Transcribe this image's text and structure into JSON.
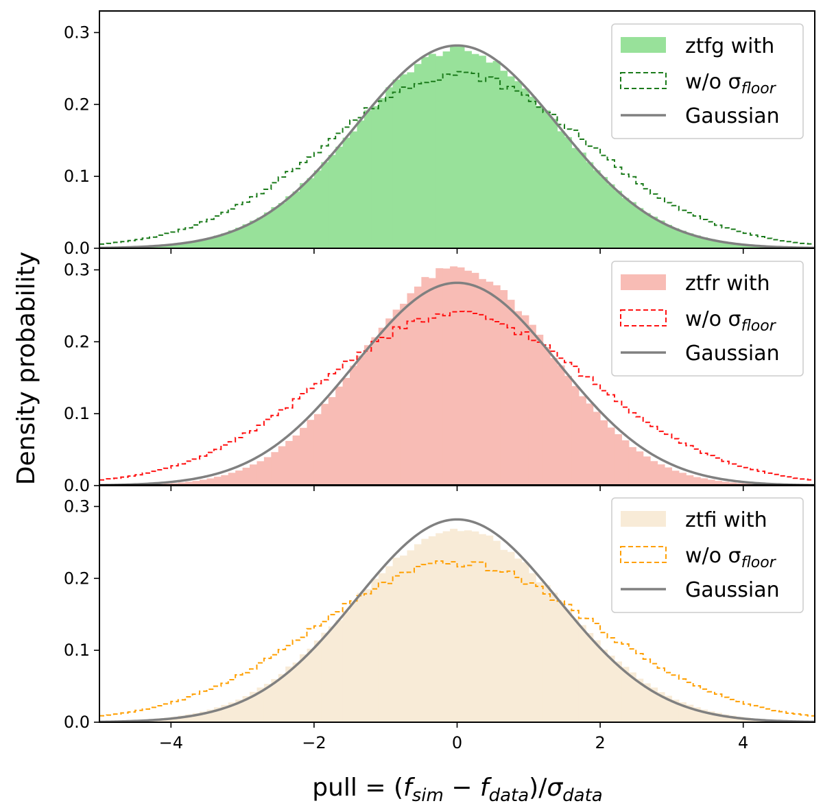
{
  "chart_data": [
    {
      "type": "histogram-step",
      "panel": "top",
      "band": "ztfg",
      "xlim": [
        -5,
        5
      ],
      "ylim": [
        0,
        0.33
      ],
      "yticks": [
        0.0,
        0.1,
        0.2,
        0.3
      ],
      "ytick_labels": [
        "0.0",
        "0.1",
        "0.2",
        "0.3"
      ],
      "legend_position": "top-right",
      "series": [
        {
          "name": "ztfg with",
          "kind": "filled-histogram",
          "color": "#98e19a",
          "sigma": 1.43,
          "peak": 0.276,
          "bins": 100
        },
        {
          "name": "w/o σ_floor",
          "kind": "dashed-step-histogram",
          "color": "#1a7a1a",
          "sigma": 1.82,
          "peak": 0.242,
          "bins": 100
        },
        {
          "name": "Gaussian",
          "kind": "line",
          "color": "#808080",
          "sigma": 1.41,
          "peak": 0.282
        }
      ],
      "legend": [
        {
          "label_main": "ztfg with",
          "label_sub": ""
        },
        {
          "label_main": "w/o σ",
          "label_sub": "floor"
        },
        {
          "label_main": "Gaussian",
          "label_sub": ""
        }
      ]
    },
    {
      "type": "histogram-step",
      "panel": "middle",
      "band": "ztfr",
      "xlim": [
        -5,
        5
      ],
      "ylim": [
        0,
        0.33
      ],
      "yticks": [
        0.0,
        0.1,
        0.2,
        0.3
      ],
      "ytick_labels": [
        "0.0",
        "0.1",
        "0.2",
        "0.3"
      ],
      "legend_position": "top-right",
      "series": [
        {
          "name": "ztfr with",
          "kind": "filled-histogram",
          "color": "#f8bcb5",
          "sigma": 1.32,
          "peak": 0.302,
          "bins": 100
        },
        {
          "name": "w/o σ_floor",
          "kind": "dashed-step-histogram",
          "color": "#ff1010",
          "sigma": 1.9,
          "peak": 0.238,
          "bins": 100
        },
        {
          "name": "Gaussian",
          "kind": "line",
          "color": "#808080",
          "sigma": 1.41,
          "peak": 0.282
        }
      ],
      "legend": [
        {
          "label_main": "ztfr with",
          "label_sub": ""
        },
        {
          "label_main": "w/o σ",
          "label_sub": "floor"
        },
        {
          "label_main": "Gaussian",
          "label_sub": ""
        }
      ]
    },
    {
      "type": "histogram-step",
      "panel": "bottom",
      "band": "ztfi",
      "xlim": [
        -5,
        5
      ],
      "ylim": [
        0,
        0.33
      ],
      "xticks": [
        -4,
        -2,
        0,
        2,
        4
      ],
      "xtick_labels": [
        "−4",
        "−2",
        "0",
        "2",
        "4"
      ],
      "yticks": [
        0.0,
        0.1,
        0.2,
        0.3
      ],
      "ytick_labels": [
        "0.0",
        "0.1",
        "0.2",
        "0.3"
      ],
      "legend_position": "top-right",
      "series": [
        {
          "name": "ztfi with",
          "kind": "filled-histogram",
          "color": "#f8ebd7",
          "sigma": 1.48,
          "peak": 0.268,
          "bins": 100
        },
        {
          "name": "w/o σ_floor",
          "kind": "dashed-step-histogram",
          "color": "#ff9f00",
          "sigma": 1.95,
          "peak": 0.221,
          "bins": 100
        },
        {
          "name": "Gaussian",
          "kind": "line",
          "color": "#808080",
          "sigma": 1.41,
          "peak": 0.282
        }
      ],
      "legend": [
        {
          "label_main": "ztfi with",
          "label_sub": ""
        },
        {
          "label_main": "w/o σ",
          "label_sub": "floor"
        },
        {
          "label_main": "Gaussian",
          "label_sub": ""
        }
      ]
    }
  ],
  "axes": {
    "ylabel": "Density probability",
    "xlabel": {
      "prefix": "pull = (",
      "f1": "f",
      "f1_sub": "sim",
      "minus": " − ",
      "f2": "f",
      "f2_sub": "data",
      "close": ")/",
      "sigma": "σ",
      "sigma_sub": "data"
    }
  },
  "colors": {
    "frame": "#000000",
    "gaussian": "#808080",
    "legend_border": "#cccccc"
  }
}
